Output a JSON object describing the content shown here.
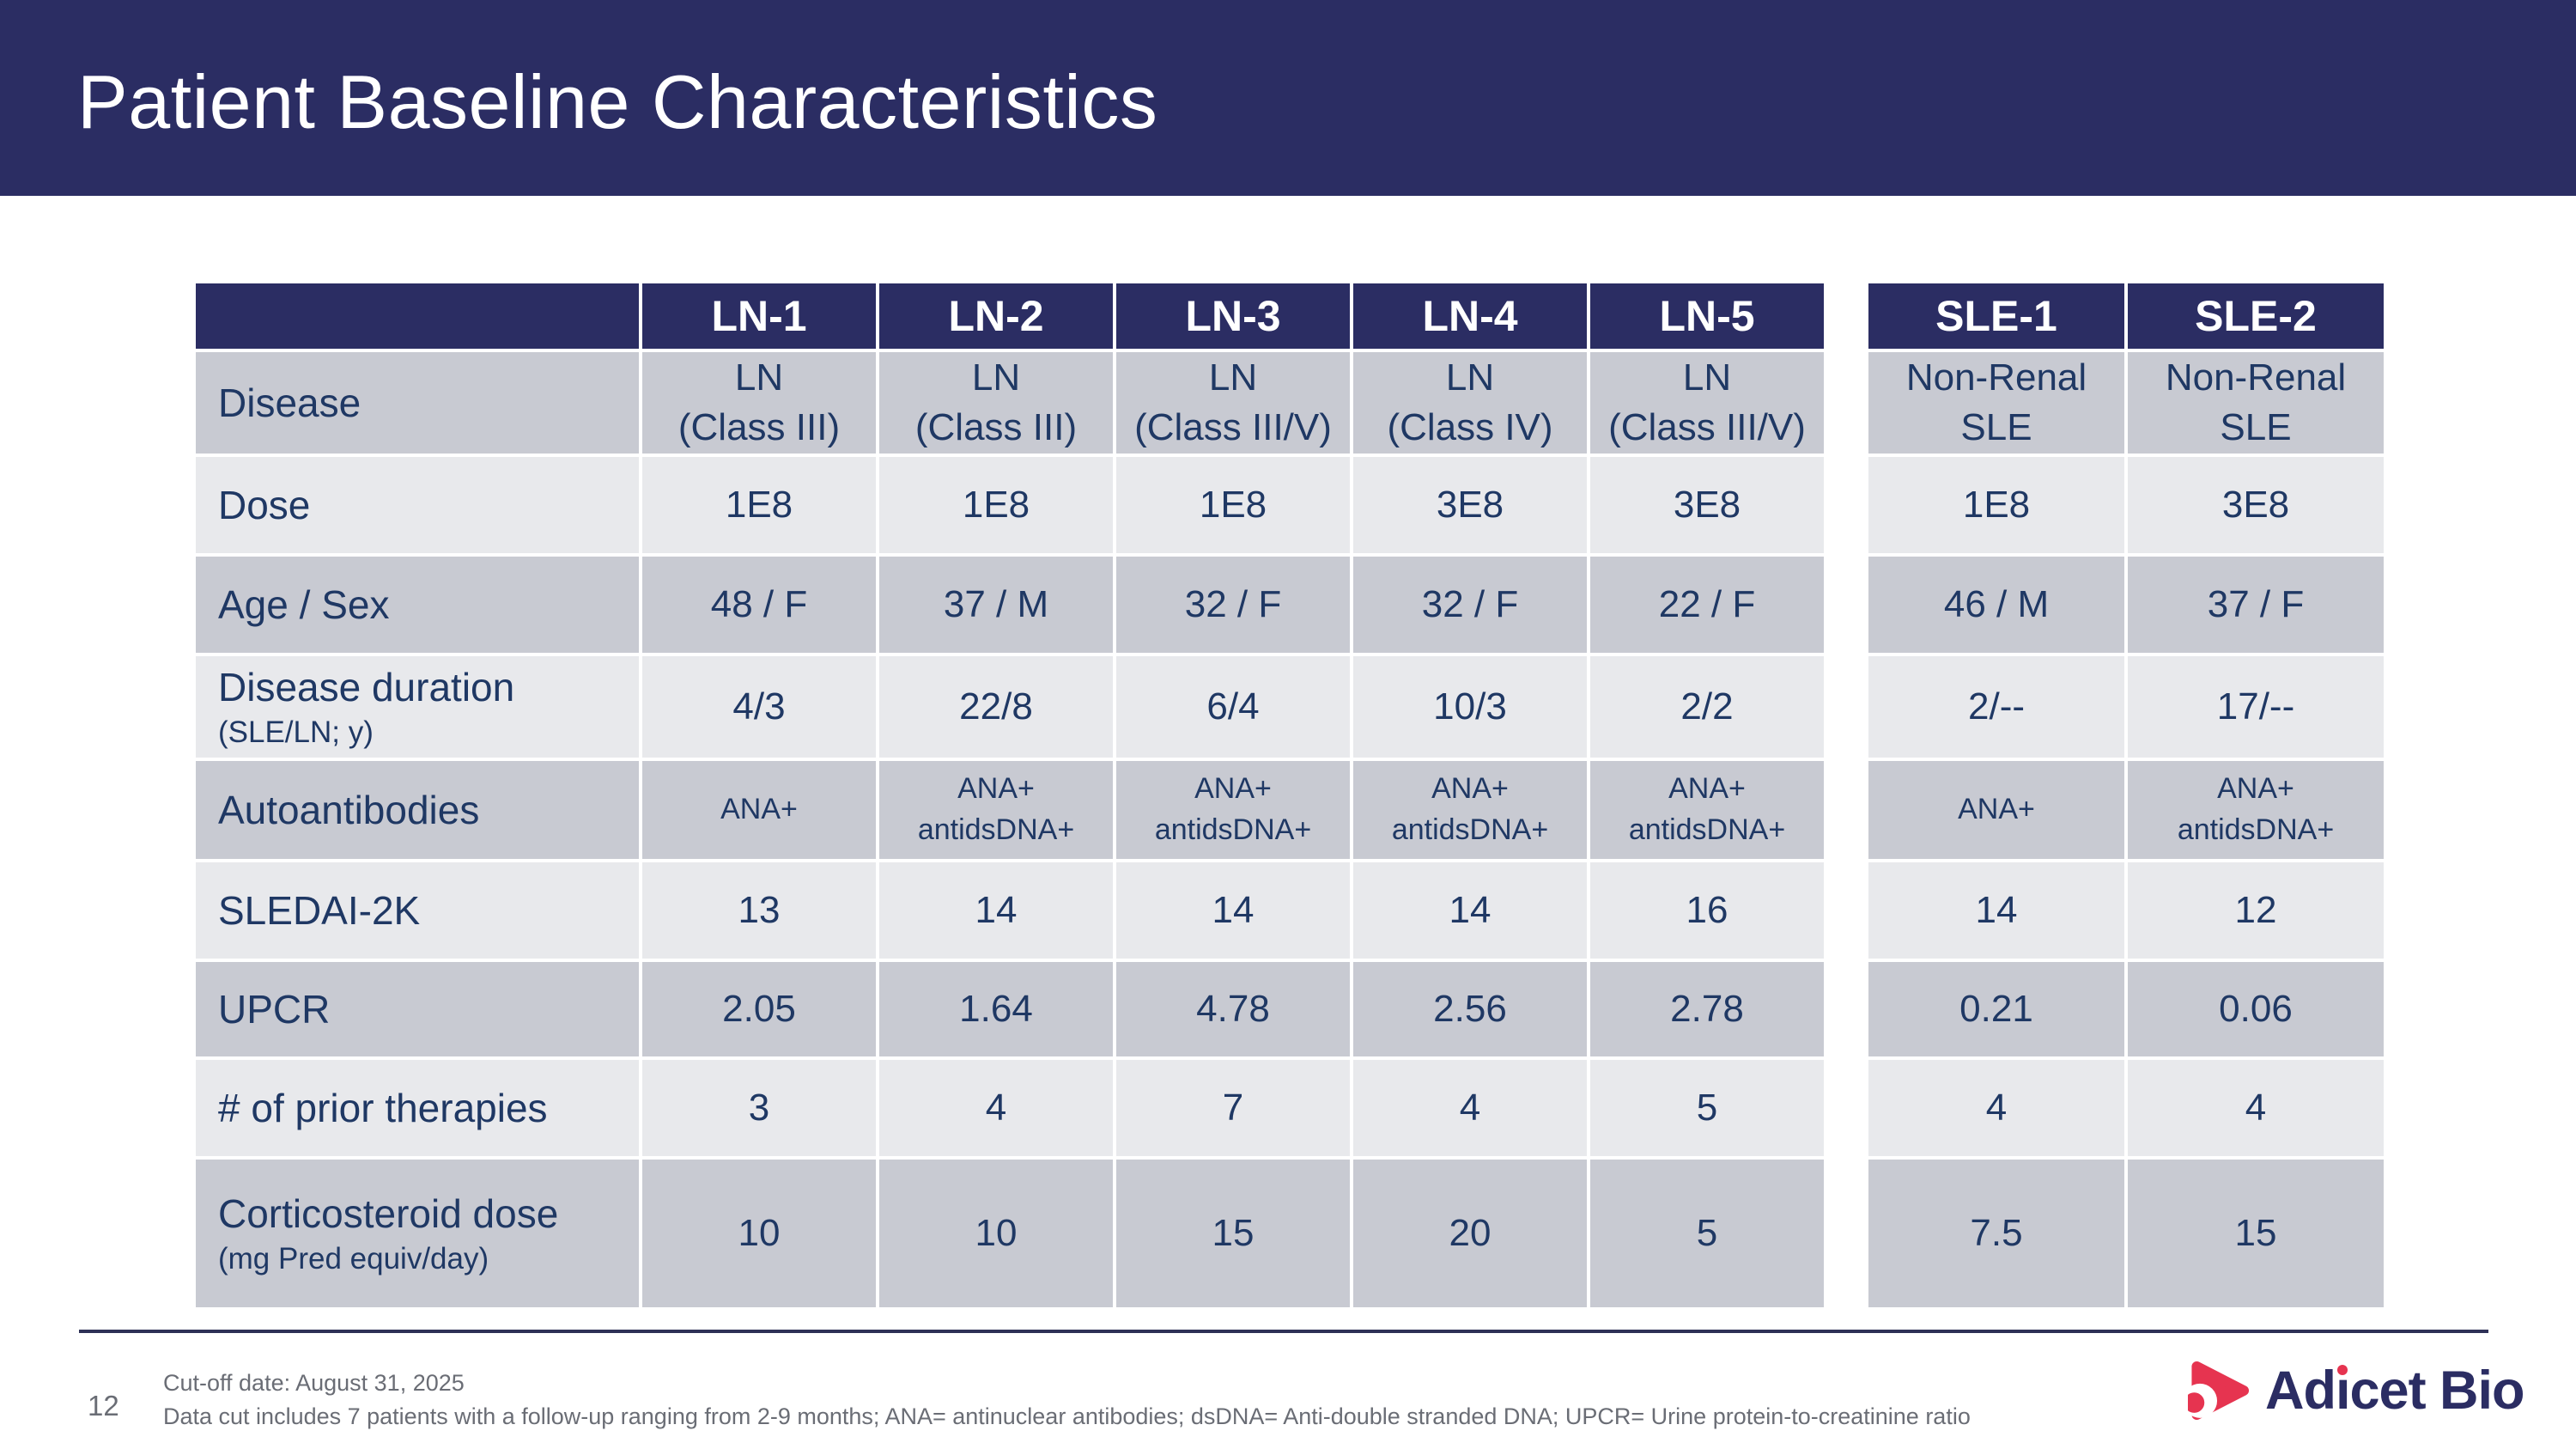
{
  "slide": {
    "title": "Patient Baseline Characteristics",
    "page_number": "12"
  },
  "table": {
    "column_headers": [
      "",
      "LN-1",
      "LN-2",
      "LN-3",
      "LN-4",
      "LN-5",
      "SLE-1",
      "SLE-2"
    ],
    "rows": [
      {
        "label": "Disease",
        "values": [
          [
            "LN",
            "(Class III)"
          ],
          [
            "LN",
            "(Class III)"
          ],
          [
            "LN",
            "(Class III/V)"
          ],
          [
            "LN",
            "(Class IV)"
          ],
          [
            "LN",
            "(Class III/V)"
          ],
          [
            "Non-Renal",
            "SLE"
          ],
          [
            "Non-Renal",
            "SLE"
          ]
        ]
      },
      {
        "label": "Dose",
        "values": [
          "1E8",
          "1E8",
          "1E8",
          "3E8",
          "3E8",
          "1E8",
          "3E8"
        ]
      },
      {
        "label": "Age / Sex",
        "values": [
          "48 / F",
          "37 / M",
          "32 / F",
          "32 / F",
          "22 / F",
          "46 / M",
          "37 / F"
        ]
      },
      {
        "label": "Disease duration",
        "sublabel": "(SLE/LN; y)",
        "values": [
          "4/3",
          "22/8",
          "6/4",
          "10/3",
          "2/2",
          "2/--",
          "17/--"
        ]
      },
      {
        "label": "Autoantibodies",
        "values": [
          [
            "ANA+"
          ],
          [
            "ANA+",
            "antidsDNA+"
          ],
          [
            "ANA+",
            "antidsDNA+"
          ],
          [
            "ANA+",
            "antidsDNA+"
          ],
          [
            "ANA+",
            "antidsDNA+"
          ],
          [
            "ANA+"
          ],
          [
            "ANA+",
            "antidsDNA+"
          ]
        ]
      },
      {
        "label": "SLEDAI-2K",
        "values": [
          "13",
          "14",
          "14",
          "14",
          "16",
          "14",
          "12"
        ]
      },
      {
        "label": "UPCR",
        "values": [
          "2.05",
          "1.64",
          "4.78",
          "2.56",
          "2.78",
          "0.21",
          "0.06"
        ]
      },
      {
        "label": "# of prior therapies",
        "values": [
          "3",
          "4",
          "7",
          "4",
          "5",
          "4",
          "4"
        ]
      },
      {
        "label": "Corticosteroid dose",
        "sublabel": "(mg Pred equiv/day)",
        "values": [
          "10",
          "10",
          "15",
          "20",
          "5",
          "7.5",
          "15"
        ]
      }
    ]
  },
  "footer": {
    "line1": "Cut-off date: August 31, 2025",
    "line2": "Data cut includes 7 patients with a follow-up ranging from 2-9 months; ANA= antinuclear antibodies; dsDNA= Anti-double stranded DNA; UPCR= Urine protein-to-creatinine ratio"
  },
  "logo": {
    "name": "Adicet Bio",
    "pre": "Ad",
    "i": "ı",
    "post": "cet Bio"
  },
  "colors": {
    "navy": "#2B2D63",
    "row_gray": "#C8CAD2",
    "row_light": "#E8E9EC",
    "cell_text": "#1F3864",
    "footer_text": "#6A6D75",
    "logo_red": "#E63450"
  }
}
